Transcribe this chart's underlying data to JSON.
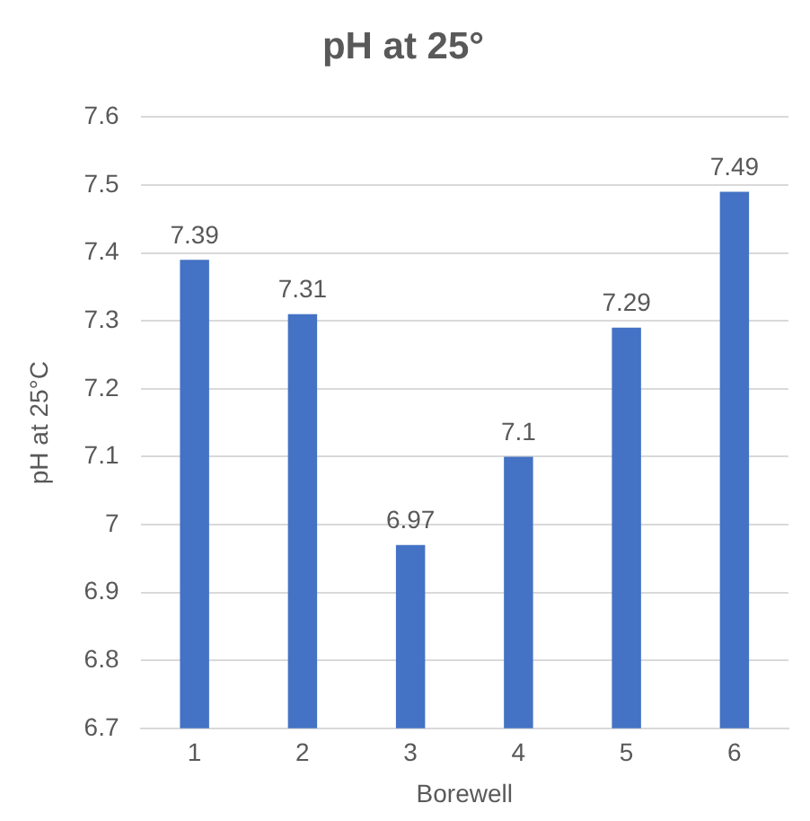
{
  "chart_data": {
    "type": "bar",
    "title": "pH at 25°",
    "xlabel": "Borewell",
    "ylabel": "pH at 25°C",
    "categories": [
      "1",
      "2",
      "3",
      "4",
      "5",
      "6"
    ],
    "values": [
      7.39,
      7.31,
      6.97,
      7.1,
      7.29,
      7.49
    ],
    "color": "#4472c4",
    "ylim": [
      6.7,
      7.6
    ],
    "yticks": [
      6.7,
      6.8,
      6.9,
      7,
      7.1,
      7.2,
      7.3,
      7.4,
      7.5,
      7.6
    ],
    "grid": "y",
    "data_labels": true,
    "legend": false
  }
}
